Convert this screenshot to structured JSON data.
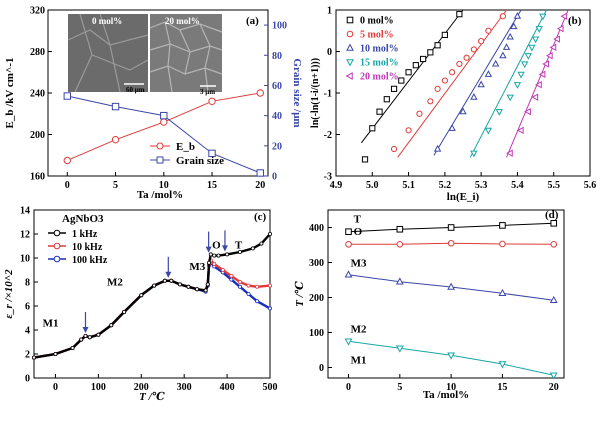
{
  "chart_data": [
    {
      "panel": "a",
      "type": "line",
      "panel_label": "(a)",
      "xlabel": "Ta /mol%",
      "ylabel_left": "E_b /kV cm^-1",
      "ylabel_right": "Grain size /μm",
      "x": [
        0,
        5,
        10,
        15,
        20
      ],
      "xlim": [
        -2,
        20.8
      ],
      "ylim_left": [
        160,
        320
      ],
      "ylim_right": [
        0,
        110
      ],
      "xticks": [
        0,
        5,
        10,
        15,
        20
      ],
      "yticks_left": [
        160,
        200,
        240,
        280,
        320
      ],
      "yticks_right": [
        0,
        20,
        40,
        60,
        80,
        100
      ],
      "series": [
        {
          "name": "E_b",
          "axis": "left",
          "marker": "circle",
          "color": "#e03a3a",
          "values": [
            175,
            195,
            212,
            232,
            240
          ]
        },
        {
          "name": "Grain size",
          "axis": "right",
          "marker": "square",
          "color": "#3a46a8",
          "values": [
            53,
            46,
            40,
            15,
            2
          ]
        }
      ],
      "insets": [
        {
          "label": "0 mol%",
          "scale": "60 μm"
        },
        {
          "label": "20 mol%",
          "scale": "3 μm"
        }
      ]
    },
    {
      "panel": "b",
      "type": "scatter",
      "panel_label": "(b)",
      "xlabel": "ln(E_i)",
      "ylabel": "ln(-ln(1-i/(n+1)))",
      "xlim": [
        4.9,
        5.6
      ],
      "ylim": [
        -3,
        1
      ],
      "xticks": [
        4.9,
        5.0,
        5.1,
        5.2,
        5.3,
        5.4,
        5.5,
        5.6
      ],
      "yticks": [
        -3,
        -2,
        -1,
        0,
        1
      ],
      "series": [
        {
          "name": "0 mol%",
          "marker": "square",
          "color": "#000000",
          "x": [
            4.98,
            5.0,
            5.02,
            5.04,
            5.06,
            5.08,
            5.1,
            5.12,
            5.14,
            5.16,
            5.18,
            5.2,
            5.24
          ],
          "y": [
            -2.6,
            -1.85,
            -1.45,
            -1.15,
            -0.9,
            -0.7,
            -0.5,
            -0.33,
            -0.18,
            -0.02,
            0.15,
            0.4,
            0.9
          ],
          "fit": [
            [
              4.97,
              -2.2
            ],
            [
              5.25,
              1.0
            ]
          ]
        },
        {
          "name": "5 mol%",
          "marker": "circle",
          "color": "#e03a3a",
          "x": [
            5.06,
            5.1,
            5.13,
            5.16,
            5.18,
            5.2,
            5.22,
            5.24,
            5.26,
            5.28,
            5.3,
            5.32,
            5.36
          ],
          "y": [
            -2.35,
            -1.9,
            -1.5,
            -1.2,
            -0.9,
            -0.7,
            -0.5,
            -0.3,
            -0.15,
            0.05,
            0.25,
            0.5,
            0.85
          ],
          "fit": [
            [
              5.07,
              -2.55
            ],
            [
              5.37,
              1.0
            ]
          ]
        },
        {
          "name": "10 mol%",
          "marker": "triangle-up",
          "color": "#3a46a8",
          "x": [
            5.18,
            5.22,
            5.25,
            5.28,
            5.3,
            5.32,
            5.34,
            5.36,
            5.37,
            5.38,
            5.39,
            5.4
          ],
          "y": [
            -2.35,
            -1.85,
            -1.45,
            -1.1,
            -0.8,
            -0.55,
            -0.3,
            -0.1,
            0.1,
            0.35,
            0.6,
            0.85
          ],
          "fit": [
            [
              5.17,
              -2.5
            ],
            [
              5.41,
              1.0
            ]
          ]
        },
        {
          "name": "15 mol%",
          "marker": "triangle-down",
          "color": "#17a5a5",
          "x": [
            5.28,
            5.32,
            5.35,
            5.38,
            5.4,
            5.41,
            5.42,
            5.43,
            5.44,
            5.45,
            5.46,
            5.47
          ],
          "y": [
            -2.45,
            -1.9,
            -1.45,
            -1.1,
            -0.8,
            -0.55,
            -0.3,
            -0.1,
            0.1,
            0.3,
            0.55,
            0.85
          ],
          "fit": [
            [
              5.27,
              -2.55
            ],
            [
              5.48,
              1.0
            ]
          ]
        },
        {
          "name": "20 mol%",
          "marker": "triangle-left",
          "color": "#c03ab5",
          "x": [
            5.38,
            5.41,
            5.43,
            5.45,
            5.46,
            5.47,
            5.48,
            5.49,
            5.5,
            5.51,
            5.52,
            5.53
          ],
          "y": [
            -2.45,
            -1.9,
            -1.45,
            -1.1,
            -0.8,
            -0.55,
            -0.3,
            -0.1,
            0.1,
            0.3,
            0.55,
            0.85
          ],
          "fit": [
            [
              5.37,
              -2.55
            ],
            [
              5.54,
              1.0
            ]
          ]
        }
      ]
    },
    {
      "panel": "c",
      "type": "line",
      "panel_label": "(c)",
      "material": "AgNbO3",
      "xlabel": "T /℃",
      "ylabel": "ε_r /×10^2",
      "xlim": [
        -50,
        500
      ],
      "ylim": [
        0,
        14
      ],
      "xticks": [
        0,
        100,
        200,
        300,
        400,
        500
      ],
      "yticks": [
        0,
        2,
        4,
        6,
        8,
        10,
        12,
        14
      ],
      "annotations": [
        {
          "text": "M1",
          "x": -30,
          "y": 4.3
        },
        {
          "text": "M2",
          "x": 120,
          "y": 7.7
        },
        {
          "text": "M3",
          "x": 312,
          "y": 9.0
        },
        {
          "text": "O",
          "x": 365,
          "y": 10.8
        },
        {
          "text": "T",
          "x": 418,
          "y": 10.8
        }
      ],
      "arrows_at_T": [
        70,
        263,
        357,
        395
      ],
      "series": [
        {
          "name": "1 kHz",
          "color": "#000000",
          "marker": "circle",
          "x": [
            -50,
            0,
            40,
            60,
            70,
            80,
            100,
            130,
            160,
            200,
            230,
            255,
            270,
            290,
            310,
            330,
            350,
            355,
            358,
            362,
            370,
            380,
            400,
            430,
            460,
            480,
            500
          ],
          "y": [
            1.7,
            2.0,
            2.5,
            3.2,
            3.5,
            3.4,
            3.6,
            4.4,
            5.5,
            6.9,
            7.7,
            8.1,
            8.1,
            7.8,
            7.6,
            7.4,
            7.3,
            7.8,
            9.6,
            10.3,
            10.2,
            10.2,
            10.3,
            10.5,
            10.8,
            11.2,
            12.0
          ]
        },
        {
          "name": "10 kHz",
          "color": "#e03a3a",
          "marker": "circle",
          "x": [
            -50,
            0,
            40,
            60,
            70,
            80,
            100,
            130,
            160,
            200,
            230,
            255,
            270,
            290,
            310,
            330,
            350,
            355,
            358,
            362,
            370,
            390,
            410,
            430,
            450,
            470,
            500
          ],
          "y": [
            1.7,
            2.0,
            2.5,
            3.2,
            3.5,
            3.4,
            3.6,
            4.4,
            5.5,
            6.9,
            7.7,
            8.1,
            8.1,
            7.8,
            7.6,
            7.4,
            7.3,
            7.8,
            9.5,
            9.8,
            9.5,
            9.0,
            8.5,
            8.0,
            7.7,
            7.6,
            7.7
          ]
        },
        {
          "name": "100 kHz",
          "color": "#1a2fbf",
          "marker": "circle",
          "x": [
            -50,
            0,
            40,
            60,
            70,
            80,
            100,
            130,
            160,
            200,
            230,
            255,
            270,
            290,
            310,
            330,
            350,
            355,
            358,
            362,
            370,
            390,
            410,
            430,
            450,
            470,
            500
          ],
          "y": [
            1.7,
            2.0,
            2.5,
            3.2,
            3.5,
            3.4,
            3.6,
            4.4,
            5.5,
            6.9,
            7.7,
            8.1,
            8.1,
            7.8,
            7.6,
            7.4,
            7.2,
            7.7,
            9.4,
            9.6,
            9.3,
            8.8,
            8.2,
            7.6,
            7.0,
            6.4,
            5.8
          ]
        }
      ]
    },
    {
      "panel": "d",
      "type": "line",
      "panel_label": "(d)",
      "xlabel": "Ta /mol%",
      "ylabel": "T /℃",
      "xlim": [
        -2,
        21
      ],
      "ylim": [
        -30,
        450
      ],
      "xticks": [
        0,
        5,
        10,
        15,
        20
      ],
      "yticks": [
        0,
        100,
        200,
        300,
        400
      ],
      "series": [
        {
          "name": "T",
          "color": "#000000",
          "marker": "square",
          "x": [
            0,
            5,
            10,
            15,
            20
          ],
          "y": [
            388,
            395,
            400,
            406,
            412
          ]
        },
        {
          "name": "O",
          "color": "#e03a3a",
          "marker": "circle",
          "x": [
            0,
            5,
            10,
            15,
            20
          ],
          "y": [
            352,
            352,
            355,
            353,
            352
          ]
        },
        {
          "name": "M3",
          "color": "#3a46a8",
          "marker": "triangle-up",
          "x": [
            0,
            5,
            10,
            15,
            20
          ],
          "y": [
            265,
            245,
            230,
            212,
            192
          ]
        },
        {
          "name": "M2/M1",
          "color": "#17a5a5",
          "marker": "triangle-down",
          "x": [
            0,
            5,
            10,
            15,
            20
          ],
          "y": [
            75,
            55,
            35,
            10,
            -22
          ]
        }
      ],
      "annotations": [
        {
          "text": "T",
          "x": 0.5,
          "y": 415
        },
        {
          "text": "O",
          "x": 0.5,
          "y": 378
        },
        {
          "text": "M3",
          "x": 0.2,
          "y": 288
        },
        {
          "text": "M2",
          "x": 0.2,
          "y": 100
        },
        {
          "text": "M1",
          "x": 0.2,
          "y": 12
        }
      ]
    }
  ]
}
